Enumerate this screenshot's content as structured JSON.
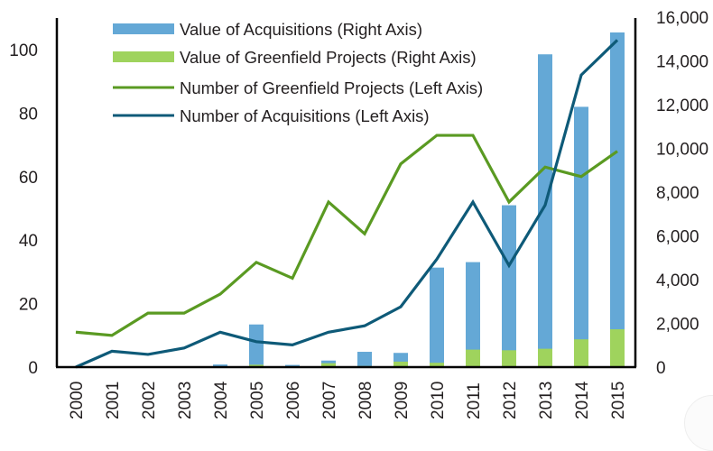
{
  "chart_data": {
    "type": "bar",
    "title": "",
    "xlabel": "",
    "ylabel_left": "",
    "ylabel_right": "",
    "categories": [
      "2000",
      "2001",
      "2002",
      "2003",
      "2004",
      "2005",
      "2006",
      "2007",
      "2008",
      "2009",
      "2010",
      "2011",
      "2012",
      "2013",
      "2014",
      "2015"
    ],
    "y_left": {
      "range": [
        0,
        100
      ],
      "ticks": [
        0,
        20,
        40,
        60,
        80,
        100
      ],
      "tick_labels": [
        "0",
        "20",
        "40",
        "60",
        "80",
        "100"
      ]
    },
    "y_right": {
      "range": [
        0,
        16000
      ],
      "ticks": [
        0,
        2000,
        4000,
        6000,
        8000,
        10000,
        12000,
        14000,
        16000
      ],
      "tick_labels": [
        "0",
        "2,000",
        "4,000",
        "6,000",
        "8,000",
        "10,000",
        "12,000",
        "14,000",
        "16,000"
      ]
    },
    "grid": false,
    "legend_position": "top-left",
    "series": [
      {
        "name": "Value of Acquisitions (Right Axis)",
        "kind": "bar",
        "axis": "right",
        "color": "#64a8d6",
        "values": [
          0,
          0,
          30,
          20,
          120,
          1950,
          100,
          300,
          700,
          650,
          4550,
          4800,
          7400,
          14300,
          11900,
          15300
        ]
      },
      {
        "name": "Value of Greenfield Projects (Right Axis)",
        "kind": "bar",
        "axis": "right",
        "color": "#9fd35d",
        "values": [
          0,
          0,
          0,
          0,
          0,
          110,
          30,
          180,
          50,
          250,
          200,
          800,
          770,
          840,
          1270,
          1730
        ]
      },
      {
        "name": "Number of Greenfield Projects (Left Axis)",
        "kind": "line",
        "axis": "left",
        "color": "#5a9a22",
        "values": [
          11,
          10,
          17,
          17,
          23,
          33,
          28,
          52,
          42,
          64,
          73,
          73,
          52,
          63,
          60,
          68
        ]
      },
      {
        "name": "Number of Acquisitions (Left Axis)",
        "kind": "line",
        "axis": "left",
        "color": "#0e5a78",
        "values": [
          0,
          5,
          4,
          6,
          11,
          8,
          7,
          11,
          13,
          19,
          34,
          52,
          32,
          51,
          92,
          103
        ]
      }
    ]
  }
}
